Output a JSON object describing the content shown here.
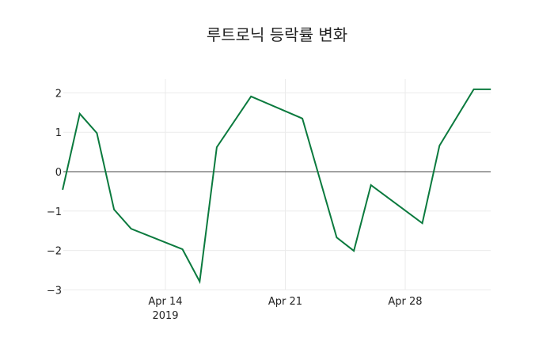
{
  "chart_data": {
    "type": "line",
    "title": "루트로닉 등락률 변화",
    "xlabel": "",
    "ylabel": "",
    "ylim": [
      -3,
      2.3
    ],
    "x_ticks": [
      "Apr 14\n2019",
      "Apr 21",
      "Apr 28"
    ],
    "y_ticks": [
      2,
      1,
      0,
      -1,
      -2,
      -3
    ],
    "y_tick_labels": [
      "2",
      "1",
      "0",
      "−1",
      "−2",
      "−3"
    ],
    "grid": true,
    "zero_line": true,
    "line_color": "#0b7a3e",
    "series": [
      {
        "name": "등락률",
        "x": [
          "2019-04-08",
          "2019-04-09",
          "2019-04-10",
          "2019-04-11",
          "2019-04-12",
          "2019-04-15",
          "2019-04-16",
          "2019-04-17",
          "2019-04-19",
          "2019-04-22",
          "2019-04-24",
          "2019-04-25",
          "2019-04-26",
          "2019-04-29",
          "2019-04-30",
          "2019-05-02",
          "2019-05-03"
        ],
        "values": [
          -0.46,
          1.47,
          0.98,
          -0.96,
          -1.45,
          -1.97,
          -2.79,
          0.62,
          1.91,
          1.35,
          -1.67,
          -2.01,
          -0.34,
          -1.31,
          0.66,
          2.09,
          2.09
        ]
      }
    ]
  },
  "title": "루트로닉 등락률 변화",
  "x_axis": {
    "ticks": [
      {
        "line1": "Apr 14",
        "line2": "2019"
      },
      {
        "line1": "Apr 21",
        "line2": ""
      },
      {
        "line1": "Apr 28",
        "line2": ""
      }
    ]
  },
  "y_axis": {
    "ticks": [
      "2",
      "1",
      "0",
      "−1",
      "−2",
      "−3"
    ]
  }
}
